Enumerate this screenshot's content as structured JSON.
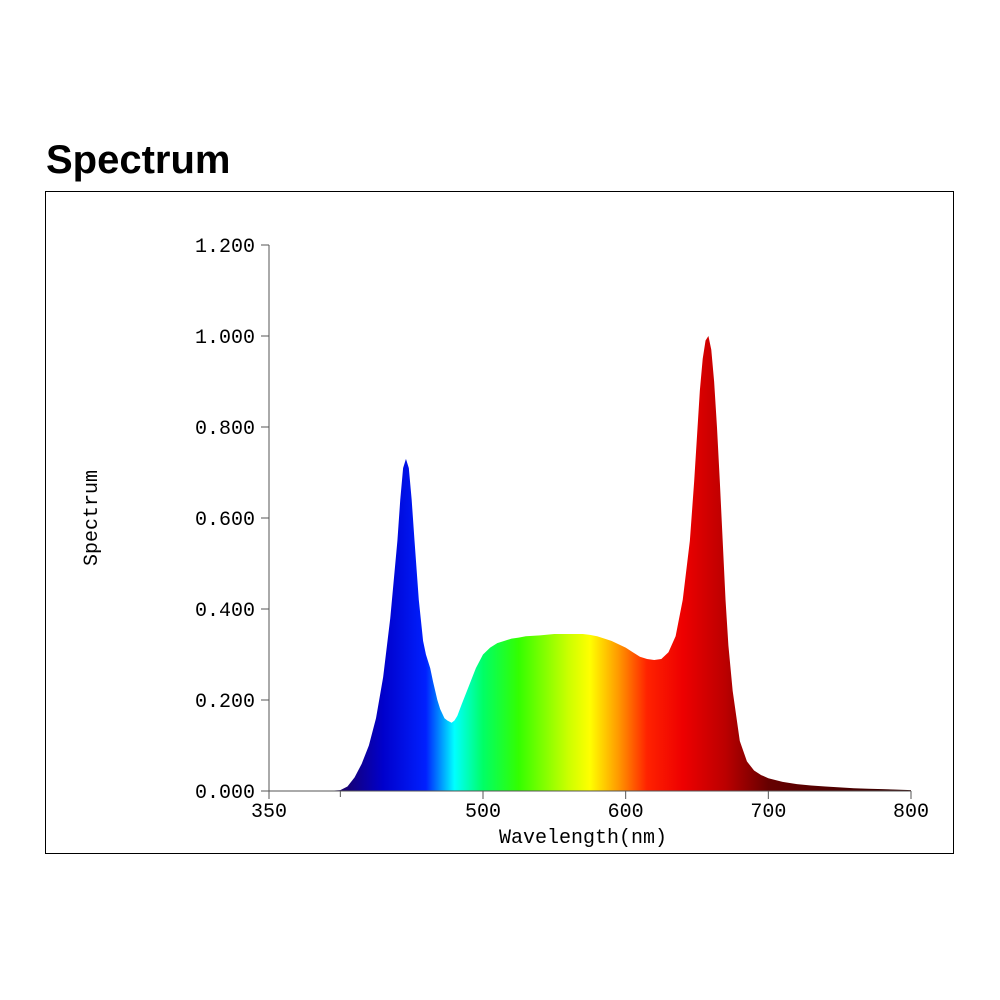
{
  "page": {
    "title": "Spectrum"
  },
  "colors": {
    "axis": "#555555",
    "spectrum_stops": [
      {
        "nm": 400,
        "color": "#1a0066"
      },
      {
        "nm": 430,
        "color": "#0000cc"
      },
      {
        "nm": 460,
        "color": "#0020ff"
      },
      {
        "nm": 480,
        "color": "#00ffff"
      },
      {
        "nm": 500,
        "color": "#00ff66"
      },
      {
        "nm": 525,
        "color": "#33ff00"
      },
      {
        "nm": 560,
        "color": "#ccff00"
      },
      {
        "nm": 575,
        "color": "#ffff00"
      },
      {
        "nm": 595,
        "color": "#ff9900"
      },
      {
        "nm": 615,
        "color": "#ff2200"
      },
      {
        "nm": 640,
        "color": "#ee0000"
      },
      {
        "nm": 670,
        "color": "#bb0000"
      },
      {
        "nm": 700,
        "color": "#660000"
      },
      {
        "nm": 800,
        "color": "#330000"
      }
    ]
  },
  "chart_data": {
    "type": "area",
    "title": "Spectrum",
    "xlabel": "Wavelength(nm)",
    "ylabel": "Spectrum",
    "xlim": [
      350,
      800
    ],
    "ylim": [
      0,
      1.2
    ],
    "x_ticks": [
      350,
      500,
      600,
      700,
      800
    ],
    "x_minor_ticks": [
      400
    ],
    "y_ticks": [
      "0.000",
      "0.200",
      "0.400",
      "0.600",
      "0.800",
      "1.000",
      "1.200"
    ],
    "grid": false,
    "series": [
      {
        "x": [
          350,
          390,
          400,
          405,
          410,
          415,
          420,
          425,
          430,
          435,
          440,
          442,
          444,
          446,
          448,
          450,
          452,
          455,
          458,
          460,
          463,
          465,
          468,
          470,
          473,
          475,
          478,
          480,
          482,
          485,
          490,
          495,
          500,
          505,
          510,
          515,
          520,
          525,
          530,
          540,
          550,
          560,
          570,
          575,
          580,
          590,
          600,
          605,
          610,
          615,
          620,
          625,
          630,
          635,
          640,
          645,
          648,
          650,
          652,
          654,
          656,
          658,
          660,
          662,
          664,
          666,
          668,
          670,
          672,
          675,
          680,
          685,
          690,
          695,
          700,
          710,
          720,
          730,
          740,
          750,
          760,
          770,
          780,
          790,
          800
        ],
        "y": [
          0,
          0,
          0.002,
          0.01,
          0.03,
          0.06,
          0.1,
          0.16,
          0.25,
          0.38,
          0.55,
          0.64,
          0.71,
          0.73,
          0.71,
          0.64,
          0.55,
          0.42,
          0.33,
          0.3,
          0.27,
          0.24,
          0.2,
          0.18,
          0.16,
          0.155,
          0.15,
          0.155,
          0.165,
          0.19,
          0.23,
          0.27,
          0.3,
          0.315,
          0.325,
          0.33,
          0.335,
          0.337,
          0.34,
          0.342,
          0.345,
          0.345,
          0.345,
          0.343,
          0.34,
          0.33,
          0.315,
          0.305,
          0.295,
          0.29,
          0.288,
          0.29,
          0.305,
          0.34,
          0.42,
          0.55,
          0.68,
          0.78,
          0.88,
          0.95,
          0.99,
          1.0,
          0.97,
          0.9,
          0.8,
          0.68,
          0.55,
          0.42,
          0.32,
          0.22,
          0.11,
          0.065,
          0.045,
          0.035,
          0.028,
          0.02,
          0.015,
          0.012,
          0.01,
          0.008,
          0.006,
          0.005,
          0.004,
          0.003,
          0.002
        ]
      }
    ]
  }
}
